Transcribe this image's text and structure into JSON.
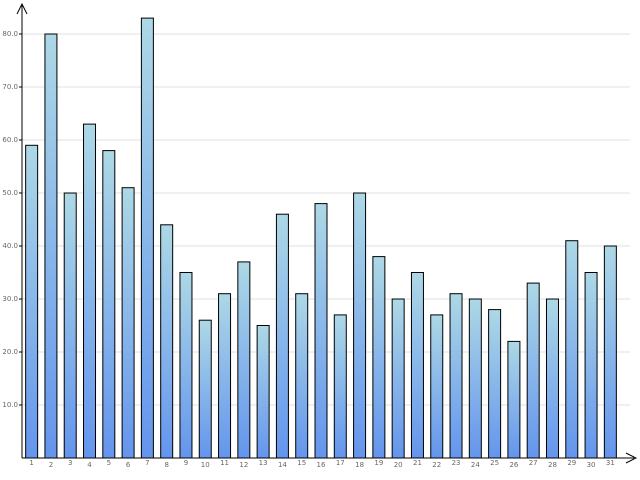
{
  "chart_data": {
    "type": "bar",
    "categories": [
      "1",
      "2",
      "3",
      "4",
      "5",
      "6",
      "7",
      "8",
      "9",
      "10",
      "11",
      "12",
      "13",
      "14",
      "15",
      "16",
      "17",
      "18",
      "19",
      "20",
      "21",
      "22",
      "23",
      "24",
      "25",
      "26",
      "27",
      "28",
      "29",
      "30",
      "31"
    ],
    "values": [
      59,
      80,
      50,
      63,
      58,
      51,
      83,
      44,
      35,
      26,
      31,
      37,
      25,
      46,
      31,
      48,
      27,
      50,
      38,
      30,
      35,
      27,
      31,
      30,
      28,
      22,
      33,
      30,
      41,
      35,
      40
    ],
    "gradient": [
      "#add8e6",
      "#6495ed"
    ],
    "ylim": [
      0,
      85
    ],
    "yticks": [
      {
        "value": 10,
        "label": "10.0"
      },
      {
        "value": 20,
        "label": "20.0"
      },
      {
        "value": 30,
        "label": "30.0"
      },
      {
        "value": 40,
        "label": "40.0"
      },
      {
        "value": 50,
        "label": "50.0"
      },
      {
        "value": 60,
        "label": "60.0"
      },
      {
        "value": 70,
        "label": "70.0"
      },
      {
        "value": 80,
        "label": "80.0"
      }
    ],
    "grid": true
  }
}
